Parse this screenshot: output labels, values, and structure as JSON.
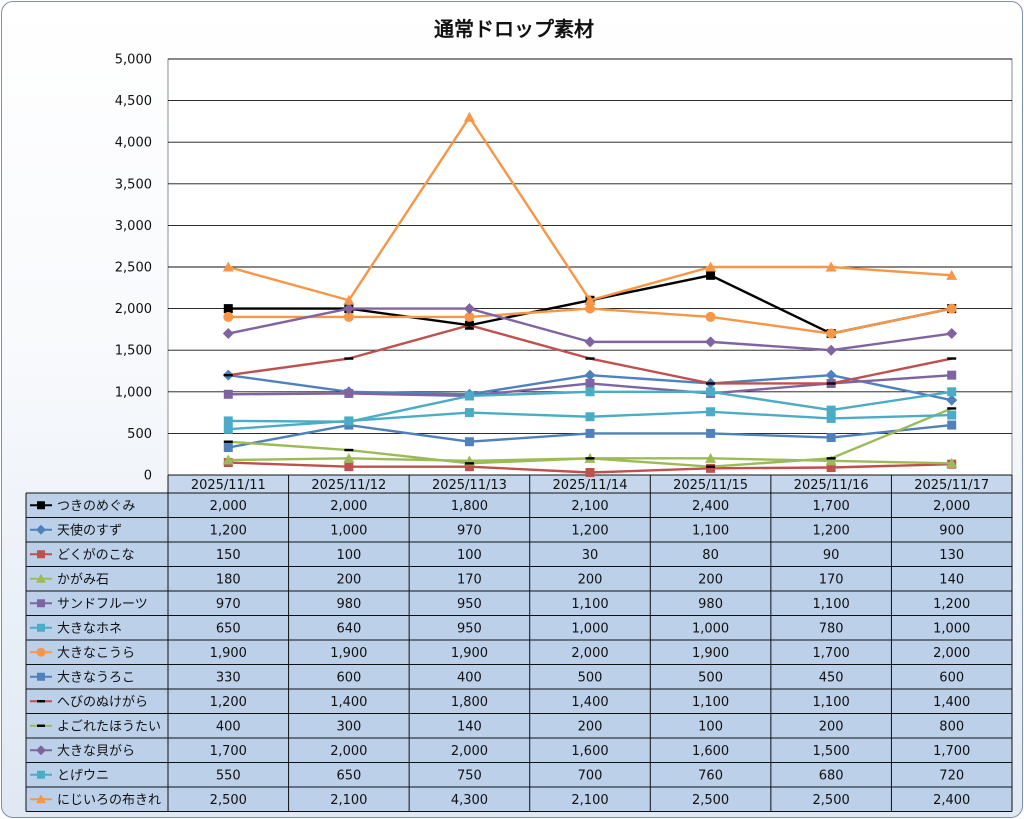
{
  "chart_data": {
    "type": "line",
    "title": "通常ドロップ素材",
    "ylim": [
      0,
      5000
    ],
    "yticks": [
      "0",
      "500",
      "1,000",
      "1,500",
      "2,000",
      "2,500",
      "3,000",
      "3,500",
      "4,000",
      "4,500",
      "5,000"
    ],
    "ytick_values": [
      0,
      500,
      1000,
      1500,
      2000,
      2500,
      3000,
      3500,
      4000,
      4500,
      5000
    ],
    "categories": [
      "2025/11/11",
      "2025/11/12",
      "2025/11/13",
      "2025/11/14",
      "2025/11/15",
      "2025/11/16",
      "2025/11/17"
    ],
    "grid": true,
    "legend": "data-table-left",
    "series": [
      {
        "name": "つきのめぐみ",
        "color": "#000000",
        "marker": "square",
        "values": [
          2000,
          2000,
          1800,
          2100,
          2400,
          1700,
          2000
        ],
        "labels": [
          "2,000",
          "2,000",
          "1,800",
          "2,100",
          "2,400",
          "1,700",
          "2,000"
        ]
      },
      {
        "name": "天使のすず",
        "color": "#4f81bd",
        "marker": "diamond",
        "values": [
          1200,
          1000,
          970,
          1200,
          1100,
          1200,
          900
        ],
        "labels": [
          "1,200",
          "1,000",
          "970",
          "1,200",
          "1,100",
          "1,200",
          "900"
        ]
      },
      {
        "name": "どくがのこな",
        "color": "#c0504d",
        "marker": "square",
        "values": [
          150,
          100,
          100,
          30,
          80,
          90,
          130
        ],
        "labels": [
          "150",
          "100",
          "100",
          "30",
          "80",
          "90",
          "130"
        ]
      },
      {
        "name": "かがみ石",
        "color": "#9bbb59",
        "marker": "triangle",
        "values": [
          180,
          200,
          170,
          200,
          200,
          170,
          140
        ],
        "labels": [
          "180",
          "200",
          "170",
          "200",
          "200",
          "170",
          "140"
        ]
      },
      {
        "name": "サンドフルーツ",
        "color": "#8064a2",
        "marker": "square",
        "values": [
          970,
          980,
          950,
          1100,
          980,
          1100,
          1200
        ],
        "labels": [
          "970",
          "980",
          "950",
          "1,100",
          "980",
          "1,100",
          "1,200"
        ]
      },
      {
        "name": "大きなホネ",
        "color": "#4bacc6",
        "marker": "square",
        "values": [
          650,
          640,
          950,
          1000,
          1000,
          780,
          1000
        ],
        "labels": [
          "650",
          "640",
          "950",
          "1,000",
          "1,000",
          "780",
          "1,000"
        ]
      },
      {
        "name": "大きなこうら",
        "color": "#f79646",
        "marker": "circle",
        "values": [
          1900,
          1900,
          1900,
          2000,
          1900,
          1700,
          2000
        ],
        "labels": [
          "1,900",
          "1,900",
          "1,900",
          "2,000",
          "1,900",
          "1,700",
          "2,000"
        ]
      },
      {
        "name": "大きなうろこ",
        "color": "#4f81bd",
        "marker": "square",
        "values": [
          330,
          600,
          400,
          500,
          500,
          450,
          600
        ],
        "labels": [
          "330",
          "600",
          "400",
          "500",
          "500",
          "450",
          "600"
        ]
      },
      {
        "name": "へびのぬけがら",
        "color": "#c0504d",
        "marker": "dash",
        "values": [
          1200,
          1400,
          1800,
          1400,
          1100,
          1100,
          1400
        ],
        "labels": [
          "1,200",
          "1,400",
          "1,800",
          "1,400",
          "1,100",
          "1,100",
          "1,400"
        ]
      },
      {
        "name": "よごれたほうたい",
        "color": "#9bbb59",
        "marker": "dash",
        "values": [
          400,
          300,
          140,
          200,
          100,
          200,
          800
        ],
        "labels": [
          "400",
          "300",
          "140",
          "200",
          "100",
          "200",
          "800"
        ]
      },
      {
        "name": "大きな貝がら",
        "color": "#8064a2",
        "marker": "diamond",
        "values": [
          1700,
          2000,
          2000,
          1600,
          1600,
          1500,
          1700
        ],
        "labels": [
          "1,700",
          "2,000",
          "2,000",
          "1,600",
          "1,600",
          "1,500",
          "1,700"
        ]
      },
      {
        "name": "とげウニ",
        "color": "#4bacc6",
        "marker": "square",
        "values": [
          550,
          650,
          750,
          700,
          760,
          680,
          720
        ],
        "labels": [
          "550",
          "650",
          "750",
          "700",
          "760",
          "680",
          "720"
        ]
      },
      {
        "name": "にじいろの布きれ",
        "color": "#f79646",
        "marker": "triangle",
        "values": [
          2500,
          2100,
          4300,
          2100,
          2500,
          2500,
          2400
        ],
        "labels": [
          "2,500",
          "2,100",
          "4,300",
          "2,100",
          "2,500",
          "2,500",
          "2,400"
        ]
      }
    ]
  }
}
